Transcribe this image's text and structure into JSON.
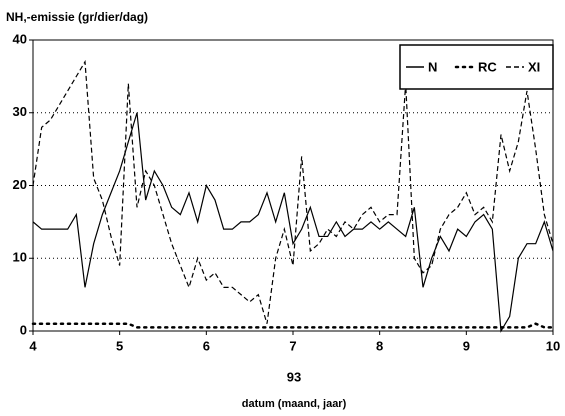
{
  "chart_data": {
    "type": "line",
    "ylabel": "NH,-emissie  (gr/dier/dag)",
    "xlabel": "datum  (maand,  jaar)",
    "x_sublabel": "93",
    "x": [
      4,
      4.1,
      4.2,
      4.3,
      4.4,
      4.5,
      4.6,
      4.7,
      4.8,
      4.9,
      5,
      5.1,
      5.2,
      5.3,
      5.4,
      5.5,
      5.6,
      5.7,
      5.8,
      5.9,
      6,
      6.1,
      6.2,
      6.3,
      6.4,
      6.5,
      6.6,
      6.7,
      6.8,
      6.9,
      7,
      7.1,
      7.2,
      7.3,
      7.4,
      7.5,
      7.6,
      7.7,
      7.8,
      7.9,
      8,
      8.1,
      8.2,
      8.3,
      8.4,
      8.5,
      8.6,
      8.7,
      8.8,
      8.9,
      9,
      9.1,
      9.2,
      9.3,
      9.4,
      9.5,
      9.6,
      9.7,
      9.8,
      9.9,
      10
    ],
    "series": [
      {
        "name": "N",
        "color": "#000000",
        "style": "solid",
        "values": [
          15,
          14,
          14,
          14,
          14,
          16,
          6,
          12,
          16,
          19,
          22,
          26,
          30,
          18,
          22,
          20,
          17,
          16,
          19,
          15,
          20,
          18,
          14,
          14,
          15,
          15,
          16,
          19,
          15,
          19,
          12,
          14,
          17,
          13,
          13,
          15,
          13,
          14,
          14,
          15,
          14,
          15,
          14,
          13,
          17,
          6,
          10,
          13,
          11,
          14,
          13,
          15,
          16,
          14,
          0,
          2,
          10,
          12,
          12,
          15,
          11
        ]
      },
      {
        "name": "RC",
        "color": "#000000",
        "style": "dotted",
        "values": [
          1,
          1,
          1,
          1,
          1,
          1,
          1,
          1,
          1,
          1,
          1,
          1,
          0.5,
          0.5,
          0.5,
          0.5,
          0.5,
          0.5,
          0.5,
          0.5,
          0.5,
          0.5,
          0.5,
          0.5,
          0.5,
          0.5,
          0.5,
          0.5,
          0.5,
          0.5,
          0.5,
          0.5,
          0.5,
          0.5,
          0.5,
          0.5,
          0.5,
          0.5,
          0.5,
          0.5,
          0.5,
          0.5,
          0.5,
          0.5,
          0.5,
          0.5,
          0.5,
          0.5,
          0.5,
          0.5,
          0.5,
          0.5,
          0.5,
          0.5,
          0.5,
          0.5,
          0.5,
          0.5,
          1,
          0.5,
          0.5
        ]
      },
      {
        "name": "XI",
        "color": "#000000",
        "style": "dashed",
        "values": [
          20,
          28,
          29,
          31,
          33,
          35,
          37,
          21,
          18,
          13,
          9,
          34,
          17,
          22,
          20,
          16,
          12,
          9,
          6,
          10,
          7,
          8,
          6,
          6,
          5,
          4,
          5,
          1,
          10,
          14,
          9,
          24,
          11,
          12,
          14,
          13,
          15,
          14,
          16,
          17,
          15,
          16,
          16,
          34,
          10,
          8,
          9,
          14,
          16,
          17,
          19,
          16,
          17,
          15,
          27,
          22,
          26,
          33,
          25,
          16,
          12
        ]
      }
    ],
    "xlim": [
      4,
      10
    ],
    "xticks": [
      4,
      5,
      6,
      7,
      8,
      9,
      10
    ],
    "ylim": [
      0,
      40
    ],
    "yticks": [
      0,
      10,
      20,
      30,
      40
    ],
    "grid": true,
    "legend": "top-right"
  }
}
